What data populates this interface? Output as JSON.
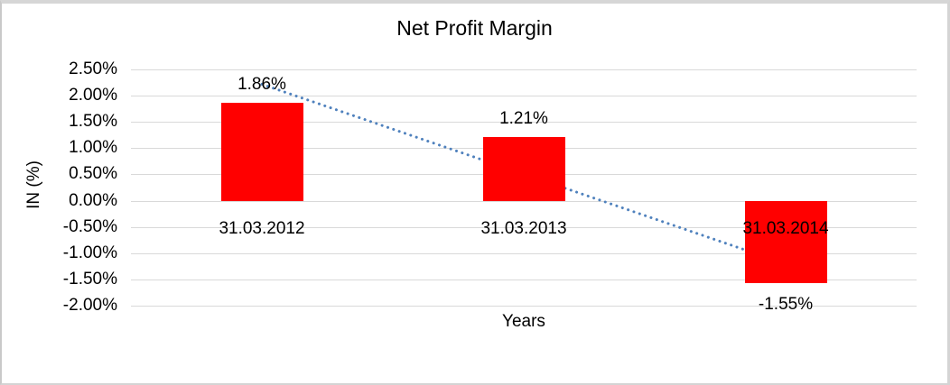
{
  "window": {
    "background": "#ffffff",
    "border_color": "#d4d4d4"
  },
  "chart_data": {
    "type": "bar",
    "title": "Net Profit Margin",
    "xlabel": "Years",
    "ylabel": "IN (%)",
    "categories": [
      "31.03.2012",
      "31.03.2013",
      "31.03.2014"
    ],
    "values": [
      1.86,
      1.21,
      -1.55
    ],
    "value_labels": [
      "1.86%",
      "1.21%",
      "-1.55%"
    ],
    "bar_color": "#ff0000",
    "ylim": [
      -2.0,
      2.5
    ],
    "y_ticks": [
      {
        "value": 2.5,
        "label": "2.50%"
      },
      {
        "value": 2.0,
        "label": "2.00%"
      },
      {
        "value": 1.5,
        "label": "1.50%"
      },
      {
        "value": 1.0,
        "label": "1.00%"
      },
      {
        "value": 0.5,
        "label": "0.50%"
      },
      {
        "value": 0.0,
        "label": "0.00%"
      },
      {
        "value": -0.5,
        "label": "-0.50%"
      },
      {
        "value": -1.0,
        "label": "-1.00%"
      },
      {
        "value": -1.5,
        "label": "-1.50%"
      },
      {
        "value": -2.0,
        "label": "-2.00%"
      }
    ],
    "grid": true,
    "gridline_color": "#d9d9d9",
    "legend": "none",
    "trendline": {
      "style": "dotted",
      "color": "#4f81bd",
      "start_category_index": 0,
      "start_value": 2.21,
      "end_category_index": 2,
      "end_value": -1.2
    }
  }
}
